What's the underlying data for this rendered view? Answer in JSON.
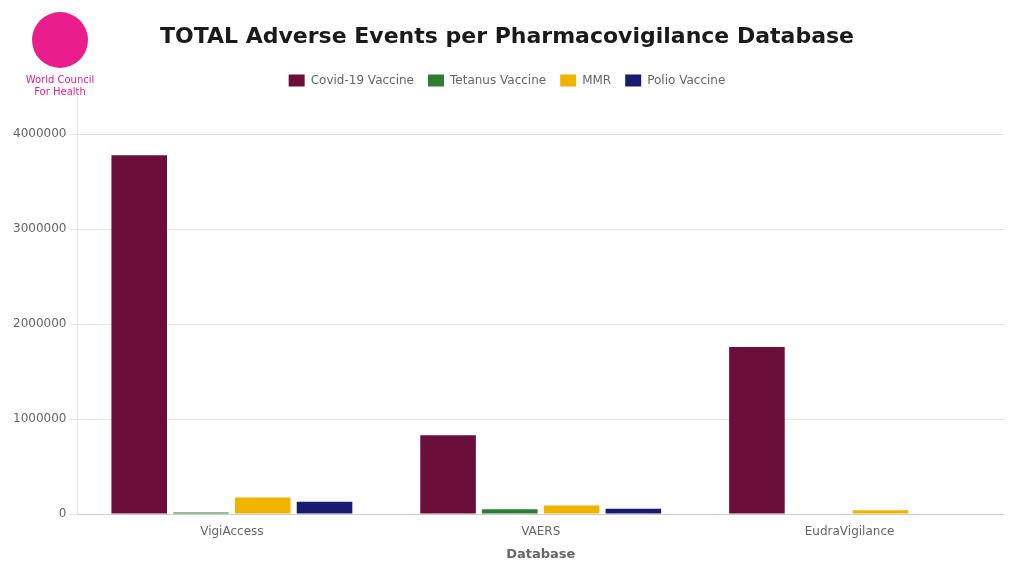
{
  "chart_data": {
    "type": "bar",
    "title": "TOTAL Adverse Events per Pharmacovigilance Database",
    "x_label": "Database",
    "categories": [
      "VigiAccess",
      "VAERS",
      "EudraVigilance"
    ],
    "series": [
      {
        "name": "Covid-19 Vaccine",
        "color": "#6B0F3A",
        "values": [
          3780000,
          830000,
          1760000
        ]
      },
      {
        "name": "Tetanus Vaccine",
        "color": "#2E7D32",
        "values": [
          15000,
          50000,
          0
        ]
      },
      {
        "name": "MMR",
        "color": "#F0B400",
        "values": [
          175000,
          90000,
          40000
        ]
      },
      {
        "name": "Polio Vaccine",
        "color": "#1A1A6E",
        "values": [
          130000,
          55000,
          0
        ]
      }
    ],
    "ylim": [
      0,
      4400000
    ],
    "yticks": [
      0,
      1000000,
      2000000,
      3000000,
      4000000
    ],
    "grid": true,
    "legend": "top",
    "annotations": [
      {
        "text": "World Council\nFor Health",
        "color": "#E91E8C"
      }
    ]
  }
}
